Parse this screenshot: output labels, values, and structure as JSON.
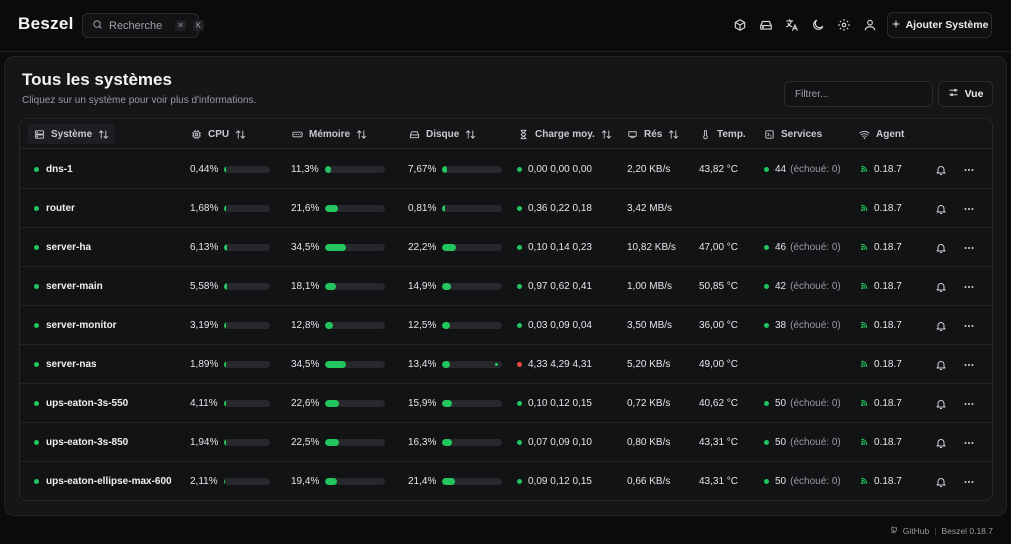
{
  "app": {
    "name": "Beszel"
  },
  "header": {
    "search_placeholder": "Recherche",
    "search_shortcut": [
      "⌘",
      "K"
    ],
    "icons": [
      "containers-icon",
      "storage-icon",
      "language-icon",
      "theme-icon",
      "settings-icon",
      "user-icon"
    ],
    "add_button_label": "Ajouter Système"
  },
  "page": {
    "title": "Tous les systèmes",
    "subtitle": "Cliquez sur un système pour voir plus d'informations.",
    "filter_placeholder": "Filtrer...",
    "view_button_label": "Vue"
  },
  "columns": {
    "system": "Système",
    "cpu": "CPU",
    "memory": "Mémoire",
    "disk": "Disque",
    "load": "Charge moy.",
    "net": "Rés",
    "temp": "Temp.",
    "services": "Services",
    "agent": "Agent"
  },
  "colors": {
    "accent": "#22c55e",
    "status_down": "#ef4444",
    "background": "#0b0b0c",
    "card": "#151618"
  },
  "systems": [
    {
      "name": "dns-1",
      "cpu": "0,44%",
      "cpu_pct": 0.44,
      "mem": "11,3%",
      "mem_pct": 11.3,
      "disk": "7,67%",
      "disk_pct": 7.67,
      "load_status": "up",
      "load": "0,00 0,00 0,00",
      "net": "2,20 KB/s",
      "temp": "43,82 °C",
      "services_count": "44",
      "services_fail": "(échoué: 0)",
      "agent": "0.18.7"
    },
    {
      "name": "router",
      "cpu": "1,68%",
      "cpu_pct": 1.68,
      "mem": "21,6%",
      "mem_pct": 21.6,
      "disk": "0,81%",
      "disk_pct": 0.81,
      "load_status": "up",
      "load": "0,36 0,22 0,18",
      "net": "3,42 MB/s",
      "temp": "",
      "services_count": "",
      "services_fail": "",
      "agent": "0.18.7"
    },
    {
      "name": "server-ha",
      "cpu": "6,13%",
      "cpu_pct": 6.13,
      "mem": "34,5%",
      "mem_pct": 34.5,
      "disk": "22,2%",
      "disk_pct": 22.2,
      "load_status": "up",
      "load": "0,10 0,14 0,23",
      "net": "10,82 KB/s",
      "temp": "47,00 °C",
      "services_count": "46",
      "services_fail": "(échoué: 0)",
      "agent": "0.18.7"
    },
    {
      "name": "server-main",
      "cpu": "5,58%",
      "cpu_pct": 5.58,
      "mem": "18,1%",
      "mem_pct": 18.1,
      "disk": "14,9%",
      "disk_pct": 14.9,
      "load_status": "up",
      "load": "0,97 0,62 0,41",
      "net": "1,00 MB/s",
      "temp": "50,85 °C",
      "services_count": "42",
      "services_fail": "(échoué: 0)",
      "agent": "0.18.7"
    },
    {
      "name": "server-monitor",
      "cpu": "3,19%",
      "cpu_pct": 3.19,
      "mem": "12,8%",
      "mem_pct": 12.8,
      "disk": "12,5%",
      "disk_pct": 12.5,
      "load_status": "up",
      "load": "0,03 0,09 0,04",
      "net": "3,50 MB/s",
      "temp": "36,00 °C",
      "services_count": "38",
      "services_fail": "(échoué: 0)",
      "agent": "0.18.7"
    },
    {
      "name": "server-nas",
      "cpu": "1,89%",
      "cpu_pct": 1.89,
      "mem": "34,5%",
      "mem_pct": 34.5,
      "disk": "13,4%",
      "disk_pct": 13.4,
      "disk_extra_dot": true,
      "load_status": "down",
      "load": "4,33 4,29 4,31",
      "net": "5,20 KB/s",
      "temp": "49,00 °C",
      "services_count": "",
      "services_fail": "",
      "agent": "0.18.7"
    },
    {
      "name": "ups-eaton-3s-550",
      "cpu": "4,11%",
      "cpu_pct": 4.11,
      "mem": "22,6%",
      "mem_pct": 22.6,
      "disk": "15,9%",
      "disk_pct": 15.9,
      "load_status": "up",
      "load": "0,10 0,12 0,15",
      "net": "0,72 KB/s",
      "temp": "40,62 °C",
      "services_count": "50",
      "services_fail": "(échoué: 0)",
      "agent": "0.18.7"
    },
    {
      "name": "ups-eaton-3s-850",
      "cpu": "1,94%",
      "cpu_pct": 1.94,
      "mem": "22,5%",
      "mem_pct": 22.5,
      "disk": "16,3%",
      "disk_pct": 16.3,
      "load_status": "up",
      "load": "0,07 0,09 0,10",
      "net": "0,80 KB/s",
      "temp": "43,31 °C",
      "services_count": "50",
      "services_fail": "(échoué: 0)",
      "agent": "0.18.7"
    },
    {
      "name": "ups-eaton-ellipse-max-600",
      "cpu": "2,11%",
      "cpu_pct": 2.11,
      "mem": "19,4%",
      "mem_pct": 19.4,
      "disk": "21,4%",
      "disk_pct": 21.4,
      "load_status": "up",
      "load": "0,09 0,12 0,15",
      "net": "0,66 KB/s",
      "temp": "43,31 °C",
      "services_count": "50",
      "services_fail": "(échoué: 0)",
      "agent": "0.18.7"
    }
  ],
  "footer": {
    "github_label": "GitHub",
    "version_label": "Beszel 0.18.7"
  }
}
